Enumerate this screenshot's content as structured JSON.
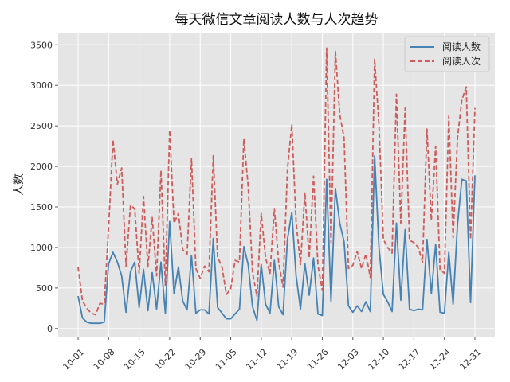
{
  "chart_data": {
    "type": "line",
    "title": "每天微信文章阅读人数与人次趋势",
    "xlabel": "",
    "ylabel": "人数",
    "grid": true,
    "legend_position": "top-right",
    "colors": {
      "plot_background": "#e5e5e5",
      "grid": "#ffffff"
    },
    "ylim": [
      -100,
      3650
    ],
    "yticks": [
      0,
      500,
      1000,
      1500,
      2000,
      2500,
      3000,
      3500
    ],
    "xticks": [
      "10-01",
      "10-08",
      "10-15",
      "10-22",
      "10-29",
      "11-05",
      "11-12",
      "11-19",
      "11-26",
      "12-03",
      "12-10",
      "12-17",
      "12-24",
      "12-31"
    ],
    "start_date": "10-01",
    "series": [
      {
        "name": "阅读人数",
        "color": "#4682b4",
        "dash": "solid",
        "values": [
          400,
          130,
          80,
          65,
          65,
          65,
          80,
          800,
          940,
          820,
          650,
          200,
          700,
          820,
          260,
          730,
          220,
          690,
          240,
          820,
          190,
          1320,
          430,
          760,
          340,
          230,
          900,
          190,
          230,
          230,
          180,
          1110,
          260,
          190,
          120,
          120,
          180,
          240,
          1010,
          790,
          270,
          100,
          790,
          300,
          190,
          840,
          270,
          170,
          1100,
          1430,
          650,
          240,
          800,
          410,
          870,
          180,
          160,
          1840,
          330,
          1730,
          1300,
          1070,
          280,
          200,
          280,
          210,
          330,
          210,
          2130,
          1000,
          420,
          330,
          210,
          1300,
          350,
          1220,
          240,
          220,
          240,
          230,
          1100,
          430,
          1040,
          200,
          190,
          940,
          300,
          1280,
          1840,
          1820,
          320,
          1890
        ]
      },
      {
        "name": "阅读人次",
        "color": "#cd5c5c",
        "dash": "dashed",
        "values": [
          760,
          340,
          250,
          190,
          170,
          310,
          300,
          1250,
          2330,
          1780,
          1980,
          770,
          1520,
          1480,
          680,
          1630,
          760,
          1370,
          650,
          1950,
          530,
          2450,
          1300,
          1420,
          970,
          920,
          2100,
          740,
          620,
          770,
          700,
          2130,
          880,
          760,
          420,
          490,
          840,
          820,
          2340,
          1760,
          690,
          400,
          1420,
          870,
          680,
          1480,
          820,
          510,
          1960,
          2520,
          1310,
          790,
          1680,
          870,
          1880,
          780,
          470,
          3460,
          1060,
          3420,
          2640,
          2350,
          740,
          780,
          950,
          740,
          920,
          630,
          3320,
          2510,
          1100,
          1000,
          930,
          2890,
          1300,
          2720,
          1090,
          1060,
          1000,
          820,
          2460,
          1330,
          2250,
          730,
          680,
          2620,
          1120,
          2350,
          2820,
          2980,
          1100,
          2720
        ]
      }
    ]
  }
}
